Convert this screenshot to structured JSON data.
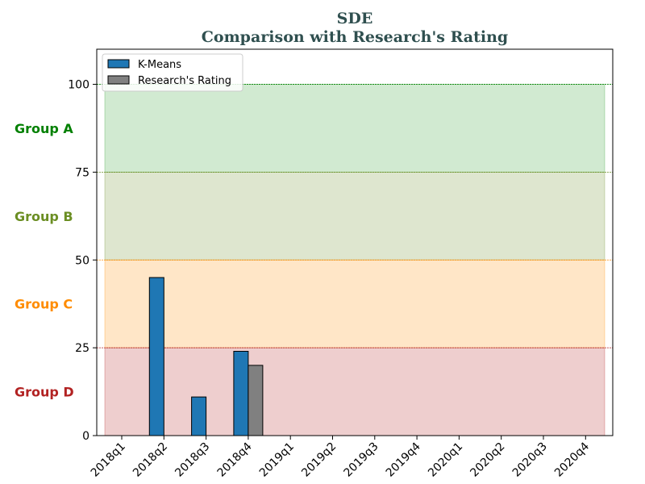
{
  "chart_data": {
    "type": "bar",
    "title": "SDE",
    "subtitle": "Comparison with Research's Rating",
    "categories": [
      "2018q1",
      "2018q2",
      "2018q3",
      "2018q4",
      "2019q1",
      "2019q2",
      "2019q3",
      "2019q4",
      "2020q1",
      "2020q2",
      "2020q3",
      "2020q4"
    ],
    "series": [
      {
        "name": "K-Means",
        "color": "#1f77b4",
        "values": [
          0,
          45,
          11,
          24,
          0,
          0,
          0,
          0,
          0,
          0,
          0,
          0
        ]
      },
      {
        "name": "Research's Rating",
        "color": "#808080",
        "values": [
          0,
          0,
          0,
          20,
          0,
          0,
          0,
          0,
          0,
          0,
          0,
          0
        ]
      }
    ],
    "ylim": [
      0,
      110
    ],
    "yticks": [
      0,
      25,
      50,
      75,
      100
    ],
    "legend_position": "top-left",
    "bands": [
      {
        "label": "Group A",
        "from": 75,
        "to": 100,
        "fill": "#2ca02c",
        "text_color": "#008000",
        "line_color": "#008000"
      },
      {
        "label": "Group B",
        "from": 50,
        "to": 75,
        "fill": "#6b8e23",
        "text_color": "#6b8e23",
        "line_color": "#6b8e23"
      },
      {
        "label": "Group C",
        "from": 25,
        "to": 50,
        "fill": "#ff8c00",
        "text_color": "#ff8c00",
        "line_color": "#ff8c00"
      },
      {
        "label": "Group D",
        "from": 0,
        "to": 25,
        "fill": "#b22222",
        "text_color": "#b22222",
        "line_color": "#b22222"
      }
    ]
  }
}
